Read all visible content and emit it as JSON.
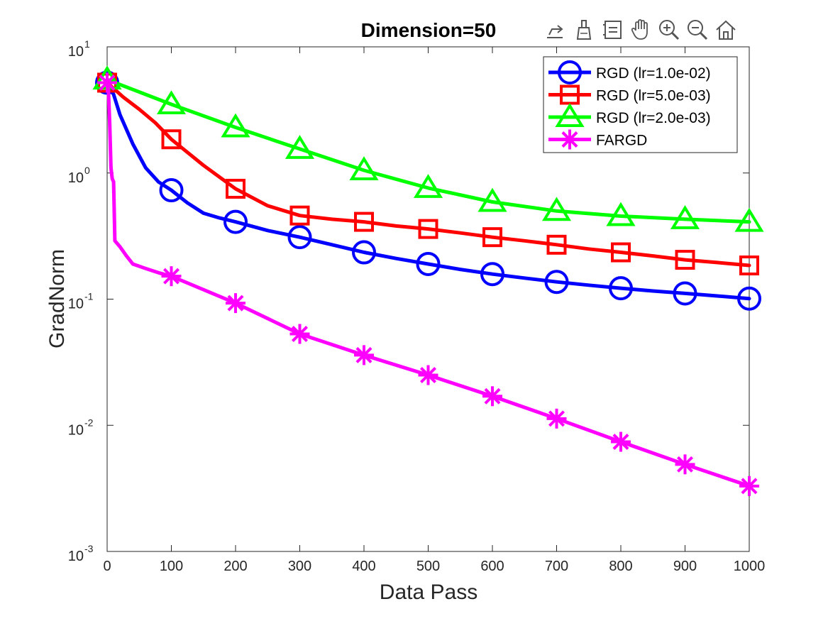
{
  "chart_data": {
    "type": "line",
    "title": "Dimension=50",
    "xlabel": "Data Pass",
    "ylabel": "GradNorm",
    "xlim": [
      0,
      1000
    ],
    "ylim": [
      0.001,
      10
    ],
    "yscale": "log",
    "xticks": [
      0,
      100,
      200,
      300,
      400,
      500,
      600,
      700,
      800,
      900,
      1000
    ],
    "xtick_labels": [
      "0",
      "100",
      "200",
      "300",
      "400",
      "500",
      "600",
      "700",
      "800",
      "900",
      "1000"
    ],
    "yticks": [
      {
        "value": 10,
        "base": "10",
        "exp": "1"
      },
      {
        "value": 1,
        "base": "10",
        "exp": "0"
      },
      {
        "value": 0.1,
        "base": "10",
        "exp": "-1"
      },
      {
        "value": 0.01,
        "base": "10",
        "exp": "-2"
      },
      {
        "value": 0.001,
        "base": "10",
        "exp": "-3"
      }
    ],
    "legend_position": "top-right",
    "series": [
      {
        "name": "RGD (lr=1.0e-02)",
        "color": "#0000ff",
        "marker": "circle",
        "x": [
          0,
          10,
          20,
          40,
          60,
          80,
          100,
          125,
          150,
          175,
          200,
          250,
          300,
          350,
          400,
          450,
          500,
          550,
          600,
          650,
          700,
          750,
          800,
          850,
          900,
          950,
          1000
        ],
        "y": [
          5.2,
          4.2,
          2.9,
          1.7,
          1.1,
          0.85,
          0.73,
          0.58,
          0.48,
          0.44,
          0.41,
          0.35,
          0.31,
          0.27,
          0.235,
          0.21,
          0.19,
          0.172,
          0.158,
          0.147,
          0.137,
          0.129,
          0.122,
          0.116,
          0.111,
          0.106,
          0.101
        ],
        "markers_x": [
          0,
          100,
          200,
          300,
          400,
          500,
          600,
          700,
          800,
          900,
          1000
        ],
        "markers_y": [
          5.2,
          0.73,
          0.41,
          0.31,
          0.235,
          0.19,
          0.158,
          0.137,
          0.122,
          0.111,
          0.101
        ]
      },
      {
        "name": "RGD (lr=5.0e-03)",
        "color": "#ff0000",
        "marker": "square",
        "x": [
          0,
          25,
          50,
          75,
          100,
          150,
          200,
          250,
          300,
          350,
          400,
          450,
          500,
          550,
          600,
          650,
          700,
          750,
          800,
          850,
          900,
          950,
          1000
        ],
        "y": [
          5.2,
          4.0,
          3.2,
          2.5,
          1.85,
          1.15,
          0.75,
          0.55,
          0.46,
          0.43,
          0.41,
          0.38,
          0.36,
          0.335,
          0.31,
          0.29,
          0.27,
          0.25,
          0.235,
          0.22,
          0.205,
          0.195,
          0.185
        ],
        "markers_x": [
          0,
          100,
          200,
          300,
          400,
          500,
          600,
          700,
          800,
          900,
          1000
        ],
        "markers_y": [
          5.2,
          1.85,
          0.75,
          0.46,
          0.41,
          0.36,
          0.31,
          0.27,
          0.235,
          0.205,
          0.185
        ]
      },
      {
        "name": "RGD (lr=2.0e-03)",
        "color": "#00ff00",
        "marker": "triangle",
        "x": [
          0,
          100,
          200,
          300,
          400,
          500,
          600,
          700,
          800,
          900,
          1000
        ],
        "y": [
          5.5,
          3.5,
          2.3,
          1.55,
          1.05,
          0.76,
          0.59,
          0.5,
          0.455,
          0.43,
          0.41
        ],
        "markers_x": [
          0,
          100,
          200,
          300,
          400,
          500,
          600,
          700,
          800,
          900,
          1000
        ],
        "markers_y": [
          5.5,
          3.5,
          2.3,
          1.55,
          1.05,
          0.76,
          0.59,
          0.5,
          0.455,
          0.43,
          0.41
        ]
      },
      {
        "name": "FARGD",
        "color": "#ff00ff",
        "marker": "asterisk",
        "x": [
          0,
          2,
          4,
          6,
          8,
          10,
          12,
          20,
          30,
          40,
          60,
          80,
          100,
          200,
          300,
          400,
          500,
          600,
          700,
          800,
          900,
          1000
        ],
        "y": [
          5.2,
          4.5,
          2.5,
          1.1,
          0.9,
          0.85,
          0.29,
          0.26,
          0.22,
          0.19,
          0.175,
          0.162,
          0.152,
          0.093,
          0.053,
          0.036,
          0.025,
          0.017,
          0.0113,
          0.0074,
          0.0049,
          0.0033
        ],
        "markers_x": [
          0,
          100,
          200,
          300,
          400,
          500,
          600,
          700,
          800,
          900,
          1000
        ],
        "markers_y": [
          5.2,
          0.152,
          0.093,
          0.053,
          0.036,
          0.025,
          0.017,
          0.0113,
          0.0074,
          0.0049,
          0.0033
        ]
      }
    ]
  },
  "toolbar": {
    "icons": [
      "export-icon",
      "brush-icon",
      "legend-toggle-icon",
      "pan-hand-icon",
      "zoom-in-icon",
      "zoom-out-icon",
      "home-icon"
    ]
  }
}
